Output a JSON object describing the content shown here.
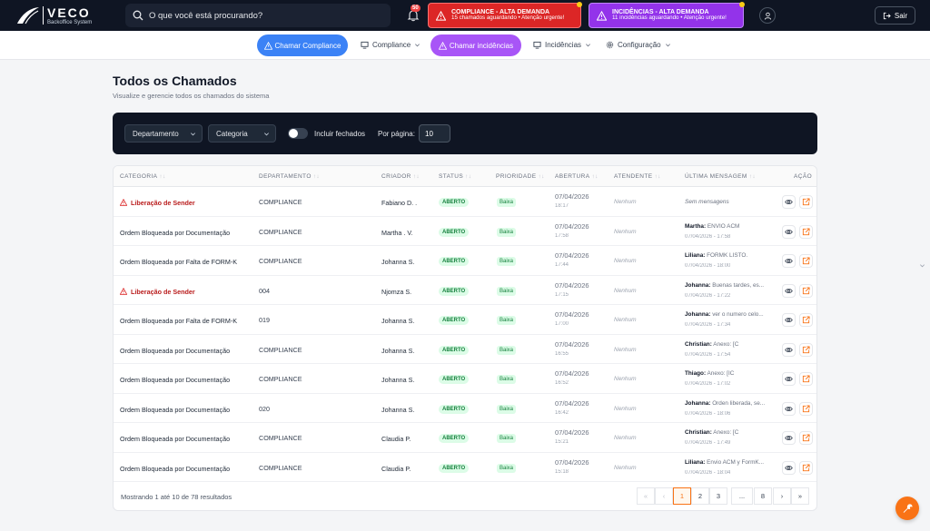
{
  "header": {
    "logo_name": "VECO",
    "logo_sub": "Backoffice System",
    "search_placeholder": "O que você está procurando?",
    "notification_count": "50",
    "alert_compliance_title": "COMPLIANCE - ALTA DEMANDA",
    "alert_compliance_sub": "15 chamados aguardando • Atenção urgente!",
    "alert_incidencias_title": "INCIDÊNCIAS - ALTA DEMANDA",
    "alert_incidencias_sub": "11 incidências aguardando • Atenção urgente!",
    "logout_label": "Sair"
  },
  "nav": {
    "chamar_compliance": "Chamar Compliance",
    "compliance": "Compliance",
    "chamar_incidencias": "Chamar incidências",
    "incidencias": "Incidências",
    "configuracao": "Configuração"
  },
  "page": {
    "title": "Todos os Chamados",
    "subtitle": "Visualize e gerencie todos os chamados do sistema"
  },
  "filters": {
    "departamento": "Departamento",
    "categoria": "Categoria",
    "incluir_fechados": "Incluir fechados",
    "por_pagina_label": "Por página:",
    "por_pagina_value": "10"
  },
  "table": {
    "headers": {
      "categoria": "CATEGORIA",
      "departamento": "DEPARTAMENTO",
      "criador": "CRIADOR",
      "status": "STATUS",
      "prioridade": "PRIORIDADE",
      "abertura": "ABERTURA",
      "atendente": "ATENDENTE",
      "ultima_mensagem": "ÚLTIMA MENSAGEM",
      "acao": "AÇÃO"
    },
    "rows": [
      {
        "categoria": "Liberação de Sender",
        "departamento": "COMPLIANCE",
        "criador": "Fabiano D. .",
        "status": "ABERTO",
        "prioridade": "Baixa",
        "data": "07/04/2026",
        "hora": "18:17",
        "atendente": "Nenhum",
        "msg_autor": "",
        "msg_texto": "Sem mensagens",
        "msg_data": ""
      },
      {
        "categoria": "Ordem Bloqueada por Documentação",
        "departamento": "COMPLIANCE",
        "criador": "Martha . V.",
        "status": "ABERTO",
        "prioridade": "Baixa",
        "data": "07/04/2026",
        "hora": "17:58",
        "atendente": "Nenhum",
        "msg_autor": "Martha:",
        "msg_texto": "ENVIO ACM",
        "msg_data": "07/04/2026 - 17:58"
      },
      {
        "categoria": "Ordem Bloqueada por Falta de FORM-K",
        "departamento": "COMPLIANCE",
        "criador": "Johanna S.",
        "status": "ABERTO",
        "prioridade": "Baixa",
        "data": "07/04/2026",
        "hora": "17:44",
        "atendente": "Nenhum",
        "msg_autor": "Liliana:",
        "msg_texto": "FORMK LISTO.",
        "msg_data": "07/04/2026 - 18:00"
      },
      {
        "categoria": "Liberação de Sender",
        "departamento": "004",
        "criador": "Njomza S.",
        "status": "ABERTO",
        "prioridade": "Baixa",
        "data": "07/04/2026",
        "hora": "17:15",
        "atendente": "Nenhum",
        "msg_autor": "Johanna:",
        "msg_texto": "Buenas tardes, es...",
        "msg_data": "07/04/2026 - 17:22"
      },
      {
        "categoria": "Ordem Bloqueada por Falta de FORM-K",
        "departamento": "019",
        "criador": "Johanna S.",
        "status": "ABERTO",
        "prioridade": "Baixa",
        "data": "07/04/2026",
        "hora": "17:00",
        "atendente": "Nenhum",
        "msg_autor": "Johanna:",
        "msg_texto": "ver o numero celo...",
        "msg_data": "07/04/2026 - 17:34"
      },
      {
        "categoria": "Ordem Bloqueada por Documentação",
        "departamento": "COMPLIANCE",
        "criador": "Johanna S.",
        "status": "ABERTO",
        "prioridade": "Baixa",
        "data": "07/04/2026",
        "hora": "16:55",
        "atendente": "Nenhum",
        "msg_autor": "Christian:",
        "msg_texto": "Anexo: [C",
        "msg_data": "07/04/2026 - 17:54"
      },
      {
        "categoria": "Ordem Bloqueada por Documentação",
        "departamento": "COMPLIANCE",
        "criador": "Johanna S.",
        "status": "ABERTO",
        "prioridade": "Baixa",
        "data": "07/04/2026",
        "hora": "16:52",
        "atendente": "Nenhum",
        "msg_autor": "Thiago:",
        "msg_texto": "Anexo: [IC",
        "msg_data": "07/04/2026 - 17:02"
      },
      {
        "categoria": "Ordem Bloqueada por Documentação",
        "departamento": "020",
        "criador": "Johanna S.",
        "status": "ABERTO",
        "prioridade": "Baixa",
        "data": "07/04/2026",
        "hora": "16:42",
        "atendente": "Nenhum",
        "msg_autor": "Johanna:",
        "msg_texto": "Orden liberada, se...",
        "msg_data": "07/04/2026 - 18:06"
      },
      {
        "categoria": "Ordem Bloqueada por Documentação",
        "departamento": "COMPLIANCE",
        "criador": "Claudia P.",
        "status": "ABERTO",
        "prioridade": "Baixa",
        "data": "07/04/2026",
        "hora": "15:21",
        "atendente": "Nenhum",
        "msg_autor": "Christian:",
        "msg_texto": "Anexo: [C",
        "msg_data": "07/04/2026 - 17:49"
      },
      {
        "categoria": "Ordem Bloqueada por Documentação",
        "departamento": "COMPLIANCE",
        "criador": "Claudia P.",
        "status": "ABERTO",
        "prioridade": "Baixa",
        "data": "07/04/2026",
        "hora": "15:18",
        "atendente": "Nenhum",
        "msg_autor": "Liliana:",
        "msg_texto": "Envio ACM y FormK...",
        "msg_data": "07/04/2026 - 18:04"
      }
    ]
  },
  "footer": {
    "results_text": "Mostrando 1 até 10 de 78 resultados",
    "pages": [
      "1",
      "2",
      "3",
      "...",
      "8"
    ]
  }
}
